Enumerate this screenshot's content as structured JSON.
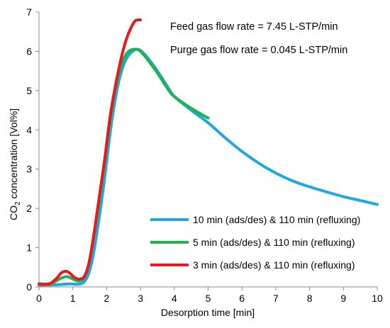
{
  "chart_data": {
    "type": "line",
    "xlabel": "Desorption time [min]",
    "ylabel_main": "CO",
    "ylabel_sub": "2",
    "ylabel_rest": " concentration [Vol%]",
    "xlim": [
      0,
      10
    ],
    "ylim": [
      0,
      7
    ],
    "xticks": [
      "0",
      "1",
      "2",
      "3",
      "4",
      "5",
      "6",
      "7",
      "8",
      "9",
      "10"
    ],
    "yticks": [
      "0",
      "1",
      "2",
      "3",
      "4",
      "5",
      "6",
      "7"
    ],
    "grid": false,
    "legend_position": "bottom-right",
    "annotations": [
      "Feed gas flow rate = 7.45 L-STP/min",
      "Purge gas flow rate = 0.045 L-STP/min"
    ],
    "series": [
      {
        "name": "10 min (ads/des) & 110 min (refluxing)",
        "color": "#1EA7E4",
        "x": [
          0,
          0.3,
          0.6,
          0.9,
          1.1,
          1.3,
          1.45,
          1.6,
          1.75,
          1.9,
          2.0,
          2.1,
          2.2,
          2.35,
          2.5,
          2.65,
          2.8,
          2.9,
          3.0,
          3.2,
          3.5,
          3.8,
          4.0,
          4.5,
          5.0,
          5.5,
          6.0,
          6.5,
          7.0,
          7.5,
          8.0,
          8.5,
          9.0,
          9.5,
          10.0
        ],
        "y": [
          0.05,
          0.05,
          0.06,
          0.08,
          0.07,
          0.1,
          0.3,
          0.8,
          1.6,
          2.5,
          3.2,
          3.9,
          4.5,
          5.2,
          5.65,
          5.9,
          6.02,
          6.05,
          6.02,
          5.85,
          5.5,
          5.1,
          4.85,
          4.5,
          4.18,
          3.8,
          3.45,
          3.15,
          2.9,
          2.7,
          2.55,
          2.42,
          2.3,
          2.2,
          2.1
        ]
      },
      {
        "name": "5 min (ads/des) & 110 min (refluxing)",
        "color": "#22B14C",
        "x": [
          0,
          0.3,
          0.5,
          0.7,
          0.85,
          1.0,
          1.15,
          1.3,
          1.45,
          1.6,
          1.75,
          1.9,
          2.0,
          2.1,
          2.2,
          2.35,
          2.5,
          2.65,
          2.8,
          2.9,
          3.0,
          3.2,
          3.5,
          3.8,
          4.0,
          4.5,
          5.0
        ],
        "y": [
          0.05,
          0.06,
          0.15,
          0.24,
          0.26,
          0.2,
          0.15,
          0.2,
          0.5,
          1.2,
          2.0,
          2.9,
          3.6,
          4.2,
          4.8,
          5.4,
          5.8,
          6.0,
          6.05,
          6.05,
          6.0,
          5.8,
          5.45,
          5.05,
          4.85,
          4.55,
          4.3
        ]
      },
      {
        "name": "3 min (ads/des) & 110 min (refluxing)",
        "color": "#E8191C",
        "x": [
          0,
          0.3,
          0.5,
          0.65,
          0.78,
          0.9,
          1.05,
          1.2,
          1.35,
          1.5,
          1.65,
          1.8,
          1.95,
          2.05,
          2.15,
          2.3,
          2.45,
          2.6,
          2.75,
          2.85,
          2.95,
          3.0
        ],
        "y": [
          0.08,
          0.08,
          0.2,
          0.35,
          0.4,
          0.36,
          0.24,
          0.2,
          0.28,
          0.7,
          1.5,
          2.4,
          3.3,
          4.0,
          4.6,
          5.3,
          5.9,
          6.35,
          6.65,
          6.78,
          6.8,
          6.8
        ]
      }
    ]
  }
}
